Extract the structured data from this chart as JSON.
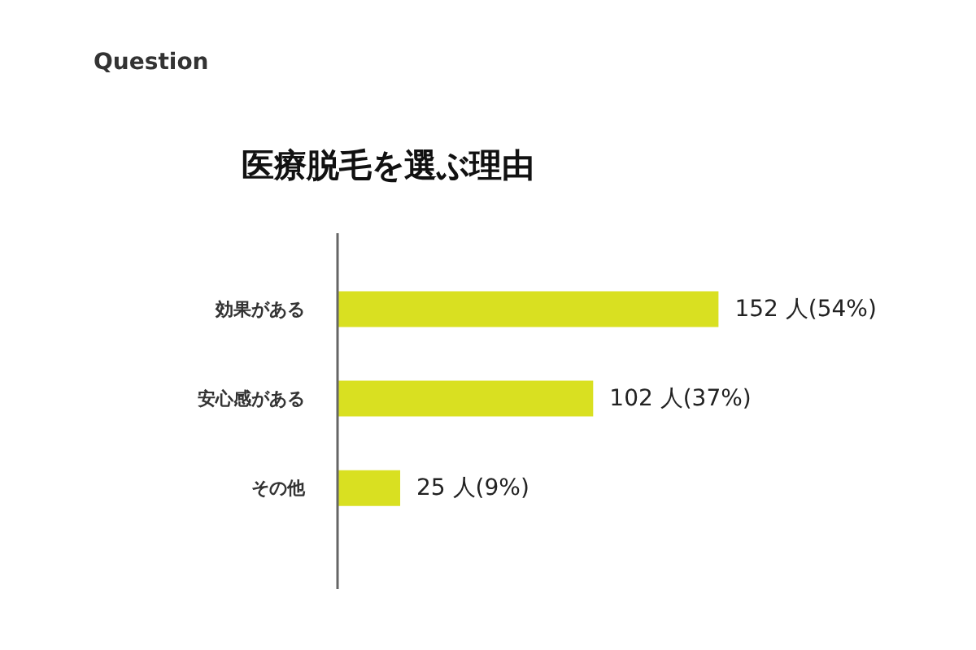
{
  "chart_data": {
    "type": "bar",
    "orientation": "horizontal",
    "title": "医療脱毛を選ぶ理由",
    "annotations": [
      "Question"
    ],
    "categories": [
      "効果がある",
      "安心感がある",
      "その他"
    ],
    "values": [
      152,
      102,
      25
    ],
    "value_labels": [
      "152 人(54%)",
      "102 人(37%)",
      "25 人(9%)"
    ],
    "color": "#d9e021",
    "tick_labels": "y"
  }
}
